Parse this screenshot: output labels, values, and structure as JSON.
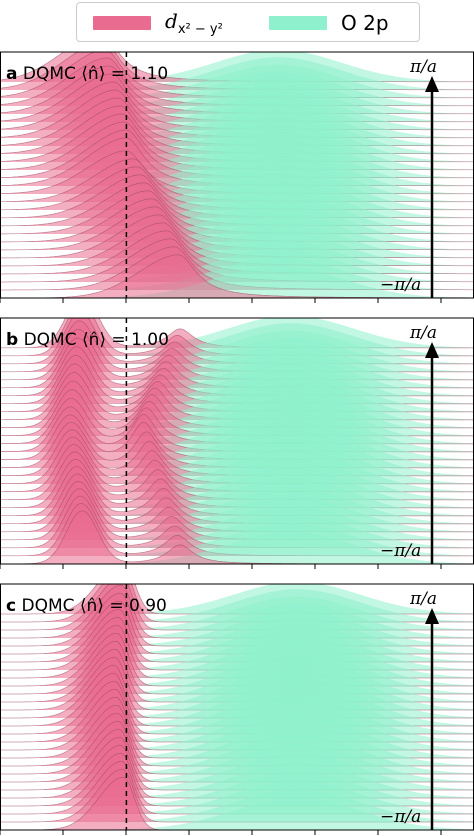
{
  "legend": {
    "d_label_main": "d",
    "d_label_sub": "x² − y²",
    "o_label": "O 2p",
    "d_color": "#e96b8f",
    "o_color": "#8ef0cc"
  },
  "chart_data": [
    {
      "type": "area",
      "panel": "a",
      "title": "DQMC ⟨n̂⟩ = 1.10",
      "label_letter": "a",
      "label_text": "DQMC ⟨n̂⟩ = 1.10",
      "k_top": "π/a",
      "k_bottom": "−π/a",
      "series": [
        {
          "name": "d_{x²−y²}",
          "peak_x": [
            -0.6,
            0.0,
            0.8
          ]
        },
        {
          "name": "O 2p",
          "center_x": 2.4,
          "width": 1.4
        }
      ],
      "n_curves": 28,
      "fermi_level_x": 0
    },
    {
      "type": "area",
      "panel": "b",
      "title": "DQMC ⟨n̂⟩ = 1.00",
      "label_letter": "b",
      "label_text": "DQMC ⟨n̂⟩ = 1.00",
      "k_top": "π/a",
      "k_bottom": "−π/a",
      "series": [
        {
          "name": "d_{x²−y²}",
          "peak_x": [
            -0.7,
            0.5
          ]
        },
        {
          "name": "O 2p",
          "center_x": 2.6,
          "width": 1.4
        }
      ],
      "n_curves": 28,
      "fermi_level_x": 0
    },
    {
      "type": "area",
      "panel": "c",
      "title": "DQMC ⟨n̂⟩ = 0.90",
      "label_letter": "c",
      "label_text": "DQMC ⟨n̂⟩ = 0.90",
      "k_top": "π/a",
      "k_bottom": "−π/a",
      "series": [
        {
          "name": "d_{x²−y²}",
          "peak_x": [
            -0.3,
            0.0
          ]
        },
        {
          "name": "O 2p",
          "center_x": 2.7,
          "width": 1.4
        }
      ],
      "n_curves": 28,
      "fermi_level_x": 0
    }
  ]
}
